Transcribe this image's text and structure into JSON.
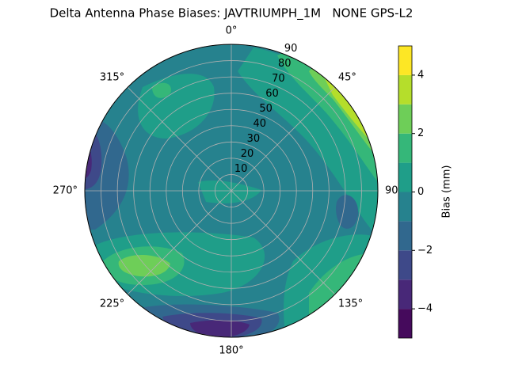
{
  "chart_data": {
    "type": "polar-contour",
    "title": "Delta Antenna Phase Biases: JAVTRIUMPH_1M   NONE GPS-L2",
    "rlim": [
      0,
      90
    ],
    "rticks": [
      10,
      20,
      30,
      40,
      50,
      60,
      70,
      80,
      90
    ],
    "thetaticks": [
      {
        "value": 0,
        "label": "0°"
      },
      {
        "value": 45,
        "label": "45°"
      },
      {
        "value": 90,
        "label": "90"
      },
      {
        "value": 135,
        "label": "135°"
      },
      {
        "value": 180,
        "label": "180°"
      },
      {
        "value": 225,
        "label": "225°"
      },
      {
        "value": 270,
        "label": "270°"
      },
      {
        "value": 315,
        "label": "315°"
      }
    ],
    "grid": true,
    "colorbar": {
      "label": "Bias (mm)",
      "levels": [
        -5,
        -4,
        -3,
        -2,
        -1,
        0,
        1,
        2,
        3,
        4,
        5
      ],
      "colors": [
        "#450a5c",
        "#482878",
        "#3e4989",
        "#31688e",
        "#26828e",
        "#1f9e89",
        "#35b779",
        "#6ece58",
        "#b5de2b",
        "#fde725"
      ],
      "ticks": [
        {
          "value": -4,
          "label": "−4"
        },
        {
          "value": -2,
          "label": "−2"
        },
        0,
        2,
        4
      ]
    }
  }
}
